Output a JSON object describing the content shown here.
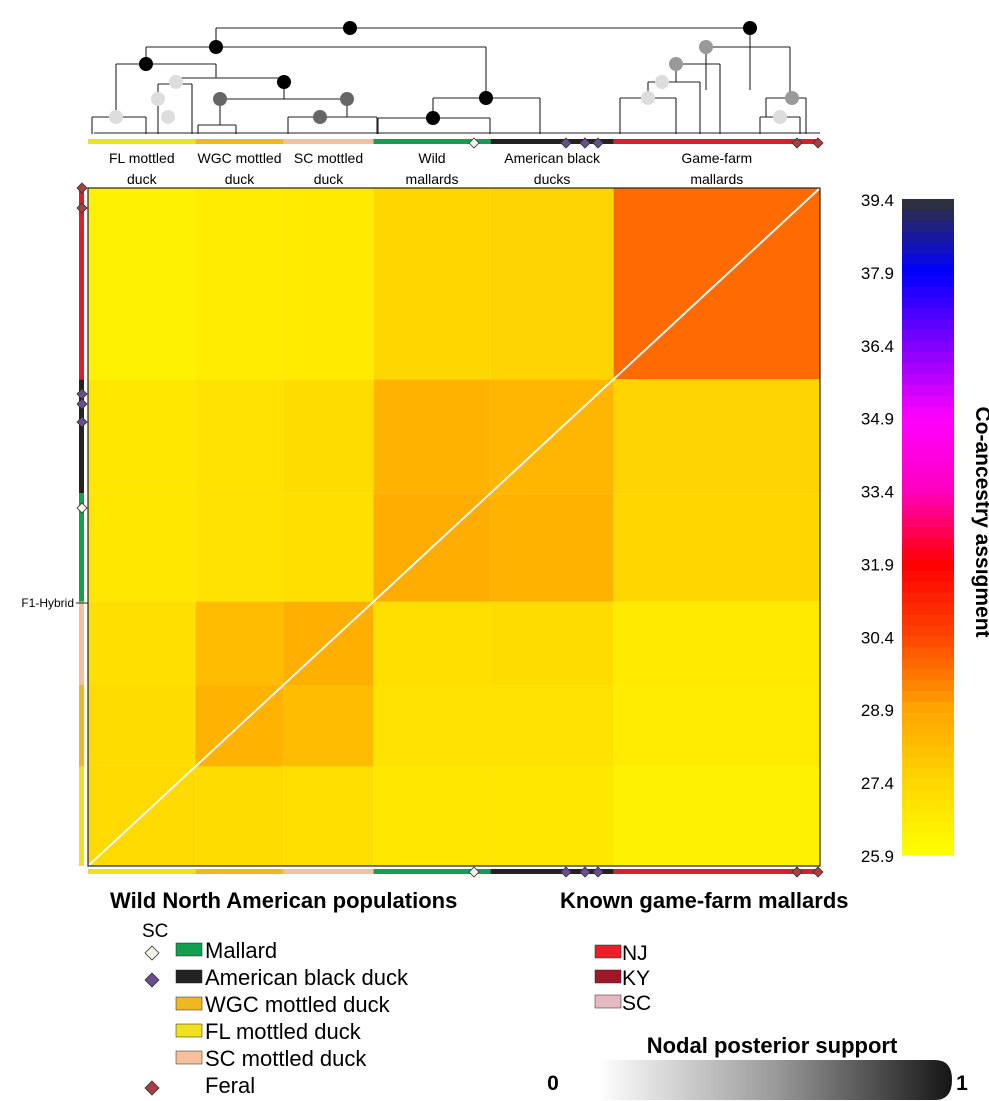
{
  "chart_data": {
    "type": "heatmap",
    "description_type": "co-ancestry heatmap with dendrogram",
    "colorbar": {
      "label": "Co-ancestry assigment",
      "ticks": [
        39.4,
        37.9,
        36.4,
        34.9,
        33.4,
        31.9,
        30.4,
        28.9,
        27.4,
        25.9
      ],
      "range": [
        25.9,
        39.4
      ],
      "palette": [
        "#ffff00",
        "#ffd700",
        "#ffa500",
        "#ff4500",
        "#ff0000",
        "#ff00c0",
        "#ff00ff",
        "#8000ff",
        "#0000ff",
        "#333333"
      ]
    },
    "clusters": [
      {
        "label": "FL mottled duck",
        "lines": [
          "FL mottled",
          "duck"
        ],
        "color": "#f0e020"
      },
      {
        "label": "WGC mottled duck",
        "lines": [
          "WGC mottled",
          "duck"
        ],
        "color": "#f0b820"
      },
      {
        "label": "SC mottled duck",
        "lines": [
          "SC mottled",
          "duck"
        ],
        "color": "#f5c09a"
      },
      {
        "label": "Wild mallards",
        "lines": [
          "Wild",
          "mallards"
        ],
        "color": "#10a050"
      },
      {
        "label": "American black ducks",
        "lines": [
          "American black",
          "ducks"
        ],
        "color": "#222222"
      },
      {
        "label": "Game-farm mallards",
        "lines": [
          "Game-farm",
          "mallards"
        ],
        "color": "#d82028"
      }
    ],
    "block_matrix": [
      [
        27.3,
        27.2,
        27.1,
        26.8,
        26.8,
        26.4
      ],
      [
        27.2,
        28.5,
        28.2,
        27.0,
        27.0,
        26.6
      ],
      [
        27.1,
        28.2,
        28.6,
        27.1,
        27.2,
        26.7
      ],
      [
        26.8,
        27.0,
        27.1,
        28.7,
        28.5,
        27.4
      ],
      [
        26.8,
        27.0,
        27.2,
        28.5,
        28.4,
        27.5
      ],
      [
        26.4,
        26.6,
        26.7,
        27.4,
        27.5,
        29.8
      ]
    ],
    "row_annotation": "F1-Hybrid",
    "posterior_support": {
      "title": "Nodal posterior support",
      "min_label": "0",
      "max_label": "1"
    }
  },
  "legend": {
    "wild_title": "Wild North American populations",
    "game_title": "Known game-farm mallards",
    "sc_label": "SC",
    "wild_items": [
      {
        "label": "Mallard",
        "color": "#10a050",
        "marker": "diamond-white"
      },
      {
        "label": "American black duck",
        "color": "#222222",
        "marker": "diamond-purple"
      },
      {
        "label": "WGC mottled duck",
        "color": "#f0b820",
        "marker": ""
      },
      {
        "label": "FL mottled duck",
        "color": "#f0e020",
        "marker": ""
      },
      {
        "label": "SC mottled duck",
        "color": "#f5c09a",
        "marker": ""
      },
      {
        "label": "Feral",
        "color": "",
        "marker": "diamond-brown"
      }
    ],
    "game_items": [
      {
        "label": "NJ",
        "color": "#e8202a"
      },
      {
        "label": "KY",
        "color": "#a01828"
      },
      {
        "label": "SC",
        "color": "#e8b8c0"
      }
    ],
    "marker_colors": {
      "white": "#f4f4e8",
      "purple": "#6a4c90",
      "brown": "#a84040"
    }
  }
}
